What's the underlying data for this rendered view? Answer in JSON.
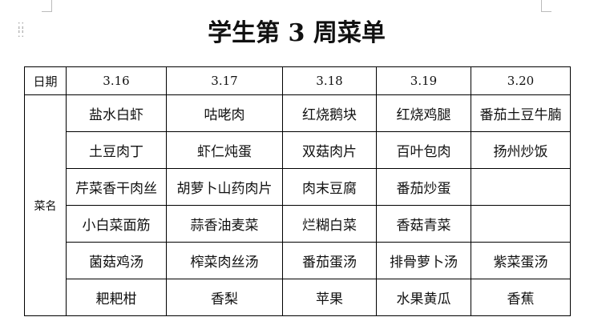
{
  "title": "学生第 3 周菜单",
  "table": {
    "date_label": "日期",
    "dish_label": "菜名",
    "dates": [
      "3.16",
      "3.17",
      "3.18",
      "3.19",
      "3.20"
    ],
    "rows": [
      [
        "盐水白虾",
        "咕咾肉",
        "红烧鹅块",
        "红烧鸡腿",
        "番茄土豆牛腩"
      ],
      [
        "土豆肉丁",
        "虾仁炖蛋",
        "双菇肉片",
        "百叶包肉",
        "扬州炒饭"
      ],
      [
        "芹菜香干肉丝",
        "胡萝卜山药肉片",
        "肉末豆腐",
        "番茄炒蛋",
        ""
      ],
      [
        "小白菜面筋",
        "蒜香油麦菜",
        "烂糊白菜",
        "香菇青菜",
        ""
      ],
      [
        "菌菇鸡汤",
        "榨菜肉丝汤",
        "番茄蛋汤",
        "排骨萝卜汤",
        "紫菜蛋汤"
      ],
      [
        "耙耙柑",
        "香梨",
        "苹果",
        "水果黄瓜",
        "香蕉"
      ]
    ]
  }
}
